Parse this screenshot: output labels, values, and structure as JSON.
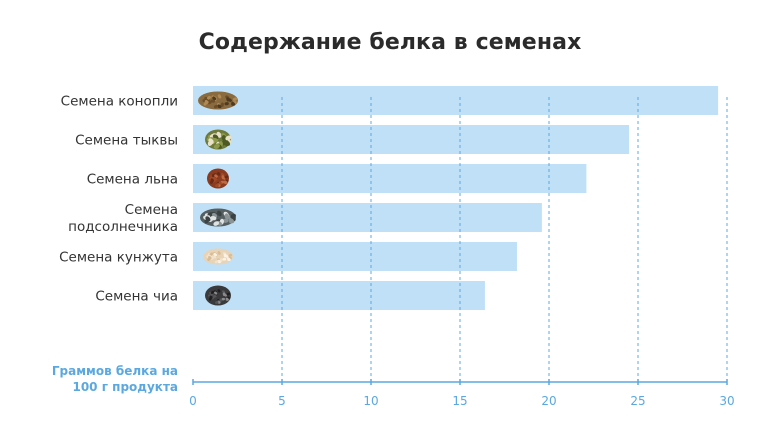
{
  "chart_data": {
    "type": "bar",
    "orientation": "horizontal",
    "title": "Содержание белка в семенах",
    "xlabel_lines": [
      "Граммов белка на",
      "100 г продукта"
    ],
    "categories": [
      [
        "Семена конопли"
      ],
      [
        "Семена тыквы"
      ],
      [
        "Семена льна"
      ],
      [
        "Семена",
        "подсолнечника"
      ],
      [
        "Семена кунжута"
      ],
      [
        "Семена чиа"
      ]
    ],
    "icons": [
      "hemp-seeds-icon",
      "pumpkin-seeds-icon",
      "flax-seeds-icon",
      "sunflower-seeds-icon",
      "sesame-seeds-icon",
      "chia-seeds-icon"
    ],
    "values": [
      29.5,
      24.5,
      22.1,
      19.6,
      18.2,
      16.4
    ],
    "xlim": [
      0,
      30
    ],
    "xticks": [
      0,
      5,
      10,
      15,
      20,
      25,
      30
    ],
    "grid": "vertical dashed",
    "colors": {
      "bar": "#bfe0f6",
      "axis": "#5ba8e0",
      "grid": "#5ba8e0",
      "title": "#2b2b2b",
      "label": "#333333"
    }
  }
}
